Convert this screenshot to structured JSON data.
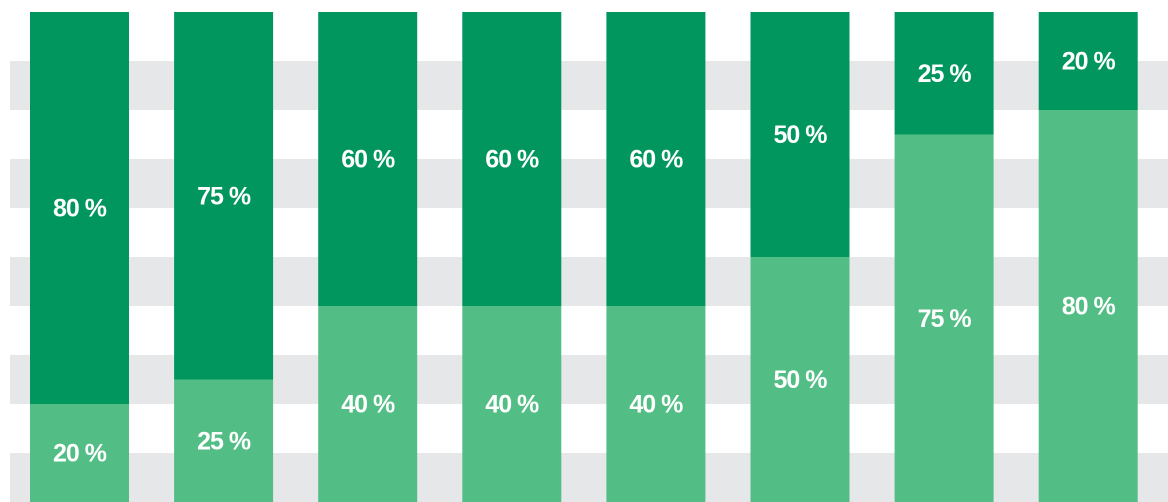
{
  "chart_data": {
    "type": "stacked-bar",
    "categories": [
      null,
      null,
      null,
      null,
      null,
      null,
      null,
      null
    ],
    "series": [
      {
        "color": "#52bd84",
        "values": [
          20,
          25,
          40,
          40,
          40,
          50,
          75,
          80
        ],
        "value_labels": [
          "20 %",
          "25 %",
          "40 %",
          "40 %",
          "40 %",
          "50 %",
          "75 %",
          "80 %"
        ]
      },
      {
        "color": "#00965e",
        "values": [
          80,
          75,
          60,
          60,
          60,
          50,
          25,
          20
        ],
        "value_labels": [
          "80 %",
          "75 %",
          "60 %",
          "60 %",
          "60 %",
          "50 %",
          "25 %",
          "20 %"
        ]
      }
    ],
    "ylim": [
      0,
      100
    ]
  }
}
